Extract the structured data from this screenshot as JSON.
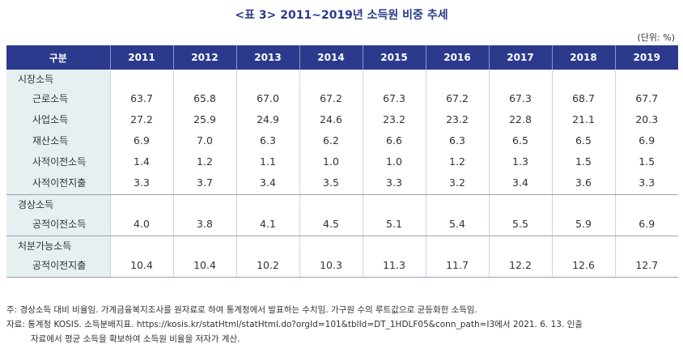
{
  "title": "<표 3> 2011~2019년 소득원 비중 추세",
  "unit": "(단위: %)",
  "table": {
    "corner": "구분",
    "years": [
      "2011",
      "2012",
      "2013",
      "2014",
      "2015",
      "2016",
      "2017",
      "2018",
      "2019"
    ],
    "groups": [
      {
        "name": "시장소득",
        "rows": [
          {
            "label": "근로소득",
            "values": [
              "63.7",
              "65.8",
              "67.0",
              "67.2",
              "67.3",
              "67.2",
              "67.3",
              "68.7",
              "67.7"
            ]
          },
          {
            "label": "사업소득",
            "values": [
              "27.2",
              "25.9",
              "24.9",
              "24.6",
              "23.2",
              "23.2",
              "22.8",
              "21.1",
              "20.3"
            ]
          },
          {
            "label": "재산소득",
            "values": [
              "6.9",
              "7.0",
              "6.3",
              "6.2",
              "6.6",
              "6.3",
              "6.5",
              "6.5",
              "6.9"
            ]
          },
          {
            "label": "사적이전소득",
            "values": [
              "1.4",
              "1.2",
              "1.1",
              "1.0",
              "1.0",
              "1.2",
              "1.3",
              "1.5",
              "1.5"
            ]
          },
          {
            "label": "사적이전지출",
            "values": [
              "3.3",
              "3.7",
              "3.4",
              "3.5",
              "3.3",
              "3.2",
              "3.4",
              "3.6",
              "3.3"
            ]
          }
        ]
      },
      {
        "name": "경상소득",
        "rows": [
          {
            "label": "공적이전소득",
            "values": [
              "4.0",
              "3.8",
              "4.1",
              "4.5",
              "5.1",
              "5.4",
              "5.5",
              "5.9",
              "6.9"
            ]
          }
        ]
      },
      {
        "name": "처분가능소득",
        "rows": [
          {
            "label": "공적이전지출",
            "values": [
              "10.4",
              "10.4",
              "10.2",
              "10.3",
              "11.3",
              "11.7",
              "12.2",
              "12.6",
              "12.7"
            ]
          }
        ]
      }
    ]
  },
  "notes": {
    "note": "주: 경상소득 대비 비율임. 가계금융복지조사를 원자료로 하여 통계청에서 발표하는 수치임. 가구원 수의 루트값으로 균등화한 소득임.",
    "source_line1": "자료: 통계청 KOSIS. 소득분배지표. https://kosis.kr/statHtml/statHtml.do?orgId=101&tblId=DT_1HDLF05&conn_path=I3에서 2021. 6. 13. 인출",
    "source_line2": "자료에서 평균 소득을 확보하여 소득원 비율을 저자가 계산."
  }
}
